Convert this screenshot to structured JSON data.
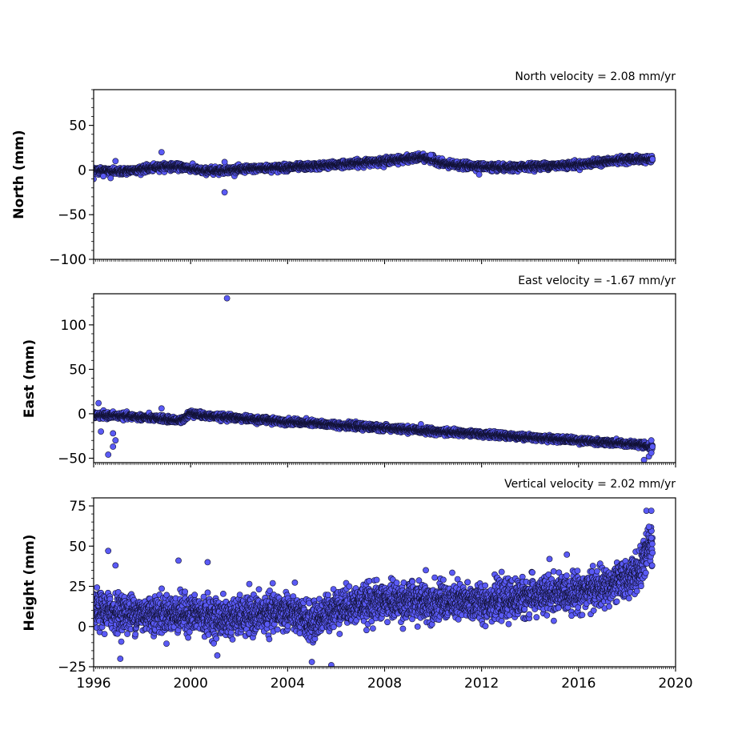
{
  "colors": {
    "marker_fill": "#5a5af5",
    "marker_edge": "#111133",
    "axes": "#000000",
    "background": "#ffffff"
  },
  "chart_data": [
    {
      "type": "scatter",
      "title": "North velocity = 2.08 mm/yr",
      "xlabel": "",
      "ylabel": "North (mm)",
      "xlim": [
        1996,
        2020
      ],
      "ylim": [
        -100,
        90
      ],
      "yticks": [
        -100,
        -50,
        0,
        50
      ],
      "ytick_labels": [
        "−100",
        "−50",
        "0",
        "50"
      ],
      "xticks": [
        1996,
        2000,
        2004,
        2008,
        2012,
        2016,
        2020
      ],
      "xtick_labels": [
        "",
        "",
        "",
        "",
        "",
        "",
        ""
      ],
      "grid": false,
      "trend_points": [
        [
          1996.0,
          0
        ],
        [
          1997.0,
          -2
        ],
        [
          1998.0,
          1
        ],
        [
          1999.0,
          4
        ],
        [
          1999.8,
          3
        ],
        [
          2000.5,
          -1
        ],
        [
          2001.5,
          0
        ],
        [
          2003.0,
          2
        ],
        [
          2005.0,
          4
        ],
        [
          2006.0,
          6
        ],
        [
          2008.0,
          10
        ],
        [
          2009.5,
          14
        ],
        [
          2010.0,
          12
        ],
        [
          2010.5,
          6
        ],
        [
          2012.0,
          4
        ],
        [
          2013.0,
          2
        ],
        [
          2014.0,
          4
        ],
        [
          2016.0,
          6
        ],
        [
          2017.0,
          9
        ],
        [
          2018.0,
          12
        ],
        [
          2019.0,
          12
        ]
      ],
      "noise_sd": 1.8,
      "outliers": [
        [
          1998.8,
          20
        ],
        [
          2001.4,
          -25
        ],
        [
          2001.4,
          9
        ],
        [
          1996.0,
          -10
        ],
        [
          1996.4,
          -7
        ],
        [
          1996.7,
          -9
        ],
        [
          1996.9,
          10
        ],
        [
          2009.9,
          17
        ],
        [
          2011.9,
          -5
        ]
      ],
      "x_end": 2019.05
    },
    {
      "type": "scatter",
      "title": "East velocity = -1.67 mm/yr",
      "xlabel": "",
      "ylabel": "East (mm)",
      "xlim": [
        1996,
        2020
      ],
      "ylim": [
        -55,
        135
      ],
      "yticks": [
        -50,
        0,
        50,
        100
      ],
      "ytick_labels": [
        "−50",
        "0",
        "50",
        "100"
      ],
      "xticks": [
        1996,
        2000,
        2004,
        2008,
        2012,
        2016,
        2020
      ],
      "xtick_labels": [
        "",
        "",
        "",
        "",
        "",
        "",
        ""
      ],
      "grid": false,
      "trend_points": [
        [
          1996.0,
          -2
        ],
        [
          1996.8,
          -2
        ],
        [
          1997.5,
          -3
        ],
        [
          1999.0,
          -6
        ],
        [
          1999.6,
          -8
        ],
        [
          2000.0,
          1
        ],
        [
          2000.5,
          -2
        ],
        [
          2004.0,
          -9
        ],
        [
          2008.0,
          -16
        ],
        [
          2012.0,
          -23
        ],
        [
          2016.0,
          -30
        ],
        [
          2018.6,
          -35
        ],
        [
          2019.0,
          -38
        ]
      ],
      "noise_sd": 1.6,
      "outliers": [
        [
          2001.5,
          130
        ],
        [
          1996.6,
          -46
        ],
        [
          1996.8,
          -37
        ],
        [
          1996.9,
          -30
        ],
        [
          1996.8,
          -22
        ],
        [
          1996.3,
          -20
        ],
        [
          1996.2,
          12
        ],
        [
          1998.8,
          6
        ],
        [
          2018.7,
          -52
        ],
        [
          2018.9,
          -48
        ],
        [
          2019.0,
          -30
        ],
        [
          2019.0,
          -44
        ]
      ],
      "x_end": 2019.05
    },
    {
      "type": "scatter",
      "title": "Vertical velocity = 2.02 mm/yr",
      "xlabel": "",
      "ylabel": "Height (mm)",
      "xlim": [
        1996,
        2020
      ],
      "ylim": [
        -25,
        80
      ],
      "yticks": [
        -25,
        0,
        25,
        50,
        75
      ],
      "ytick_labels": [
        "−25",
        "0",
        "25",
        "50",
        "75"
      ],
      "xticks": [
        1996,
        2000,
        2004,
        2008,
        2012,
        2016,
        2020
      ],
      "xtick_labels": [
        "1996",
        "2000",
        "2004",
        "2008",
        "2012",
        "2016",
        "2020"
      ],
      "grid": false,
      "trend_points": [
        [
          1996.0,
          10
        ],
        [
          1998.0,
          8
        ],
        [
          2000.0,
          8
        ],
        [
          2001.5,
          5
        ],
        [
          2004.0,
          10
        ],
        [
          2005.0,
          2
        ],
        [
          2006.0,
          12
        ],
        [
          2008.0,
          16
        ],
        [
          2012.0,
          15
        ],
        [
          2016.0,
          22
        ],
        [
          2017.3,
          25
        ],
        [
          2018.5,
          34
        ],
        [
          2018.9,
          50
        ]
      ],
      "noise_sd": 5.5,
      "outliers": [
        [
          1996.6,
          47
        ],
        [
          1996.9,
          38
        ],
        [
          1999.5,
          41
        ],
        [
          2000.7,
          40
        ],
        [
          2005.8,
          -24
        ],
        [
          2005.0,
          -22
        ],
        [
          2001.1,
          -18
        ],
        [
          1997.1,
          -20
        ],
        [
          2009.7,
          35
        ],
        [
          2014.8,
          42
        ],
        [
          2018.8,
          72
        ],
        [
          2019.0,
          72
        ],
        [
          2018.9,
          62
        ],
        [
          2019.0,
          55
        ]
      ],
      "x_end": 2019.05
    }
  ]
}
